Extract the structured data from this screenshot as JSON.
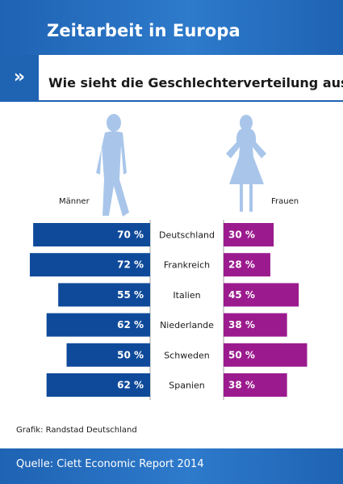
{
  "header": {
    "title": "Zeitarbeit in Europa",
    "arrow": "»",
    "subtitle": "Wie sieht die Geschlechterverteilung aus?"
  },
  "labels": {
    "men": "Männer",
    "women": "Frauen"
  },
  "colors": {
    "brand_blue": "#1f63b3",
    "men_bar": "#0f4a9a",
    "women_bar": "#9b1b8e",
    "silhouette": "#a9c6ea"
  },
  "icons": {
    "men": "man-silhouette-icon",
    "women": "woman-silhouette-icon"
  },
  "credit": "Grafik: Randstad Deutschland",
  "footer": {
    "source": "Quelle: Ciett Economic Report 2014"
  },
  "chart_data": {
    "type": "bar",
    "layout": "butterfly",
    "categories": [
      "Deutschland",
      "Frankreich",
      "Italien",
      "Niederlande",
      "Schweden",
      "Spanien"
    ],
    "series": [
      {
        "name": "Männer",
        "values": [
          70,
          72,
          55,
          62,
          50,
          62
        ]
      },
      {
        "name": "Frauen",
        "values": [
          30,
          28,
          45,
          38,
          50,
          38
        ]
      }
    ],
    "unit": "%",
    "value_format": "{v} %"
  }
}
